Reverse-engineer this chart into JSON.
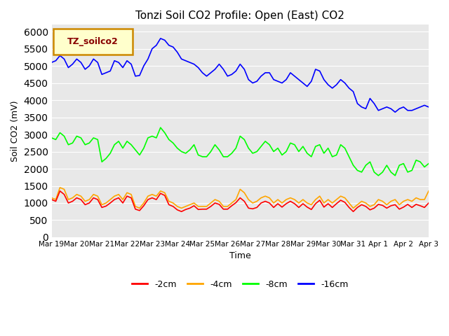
{
  "title": "Tonzi Soil CO2 Profile: Open (East) CO2",
  "xlabel": "Time",
  "ylabel": "Soil CO2 (mV)",
  "ylim": [
    0,
    6200
  ],
  "yticks": [
    0,
    500,
    1000,
    1500,
    2000,
    2500,
    3000,
    3500,
    4000,
    4500,
    5000,
    5500,
    6000
  ],
  "bg_color": "#e8e8e8",
  "fig_color": "#ffffff",
  "legend_label": "TZ_soilco2",
  "legend_bg": "#ffffcc",
  "legend_border": "#cc8800",
  "legend_text_color": "#880000",
  "series_colors": {
    "2cm": "#ff0000",
    "4cm": "#ffa500",
    "8cm": "#00ff00",
    "16cm": "#0000ff"
  },
  "x_tick_labels": [
    "Mar 19",
    "Mar 20",
    "Mar 21",
    "Mar 22",
    "Mar 23",
    "Mar 24",
    "Mar 25",
    "Mar 26",
    "Mar 27",
    "Mar 28",
    "Mar 29",
    "Mar 30",
    "Mar 31",
    "Apr 1",
    "Apr 2",
    "Apr 3"
  ],
  "line_width": 1.2,
  "series_16cm": [
    5100,
    5150,
    5300,
    5200,
    4950,
    5050,
    5200,
    5100,
    4900,
    5000,
    5200,
    5100,
    4750,
    4800,
    4850,
    5150,
    5100,
    4950,
    5150,
    5050,
    4700,
    4720,
    5000,
    5200,
    5500,
    5600,
    5800,
    5750,
    5600,
    5550,
    5400,
    5200,
    5150,
    5100,
    5050,
    4950,
    4800,
    4700,
    4800,
    4900,
    5050,
    4900,
    4700,
    4750,
    4850,
    5050,
    4900,
    4600,
    4500,
    4550,
    4700,
    4800,
    4800,
    4600,
    4550,
    4500,
    4600,
    4800,
    4700,
    4600,
    4500,
    4400,
    4550,
    4900,
    4850,
    4600,
    4450,
    4350,
    4450,
    4600,
    4500,
    4350,
    4250,
    3900,
    3800,
    3750,
    4050,
    3900,
    3700,
    3750,
    3800,
    3750,
    3650,
    3750,
    3800,
    3700,
    3700,
    3750,
    3800,
    3850,
    3800
  ],
  "series_8cm": [
    2900,
    2850,
    3050,
    2950,
    2700,
    2750,
    2950,
    2900,
    2700,
    2750,
    2900,
    2850,
    2200,
    2300,
    2450,
    2700,
    2800,
    2600,
    2800,
    2700,
    2550,
    2400,
    2600,
    2900,
    2950,
    2900,
    3200,
    3050,
    2850,
    2750,
    2600,
    2500,
    2450,
    2550,
    2700,
    2400,
    2350,
    2350,
    2500,
    2700,
    2550,
    2350,
    2350,
    2450,
    2600,
    2950,
    2850,
    2600,
    2450,
    2500,
    2650,
    2800,
    2700,
    2500,
    2600,
    2400,
    2500,
    2750,
    2700,
    2500,
    2650,
    2450,
    2350,
    2650,
    2700,
    2450,
    2600,
    2350,
    2400,
    2700,
    2600,
    2350,
    2100,
    1950,
    1900,
    2100,
    2200,
    1900,
    1800,
    1900,
    2100,
    1900,
    1800,
    2100,
    2150,
    1900,
    1950,
    2250,
    2200,
    2050,
    2150
  ],
  "series_4cm": [
    1150,
    1100,
    1450,
    1400,
    1100,
    1150,
    1250,
    1200,
    1050,
    1100,
    1250,
    1200,
    950,
    1000,
    1100,
    1200,
    1250,
    1100,
    1300,
    1250,
    900,
    850,
    1000,
    1200,
    1250,
    1200,
    1350,
    1300,
    1050,
    1000,
    900,
    850,
    900,
    950,
    1000,
    900,
    900,
    900,
    1000,
    1100,
    1050,
    900,
    900,
    1000,
    1100,
    1400,
    1300,
    1100,
    1000,
    1050,
    1150,
    1200,
    1150,
    1000,
    1100,
    1000,
    1100,
    1150,
    1100,
    1000,
    1100,
    1000,
    950,
    1100,
    1200,
    1000,
    1100,
    1000,
    1100,
    1200,
    1150,
    1000,
    850,
    950,
    1050,
    1000,
    900,
    950,
    1100,
    1050,
    950,
    1050,
    1100,
    950,
    1050,
    1100,
    1050,
    1150,
    1100,
    1100,
    1350
  ],
  "series_2cm": [
    1100,
    1050,
    1350,
    1250,
    1000,
    1050,
    1150,
    1100,
    950,
    1000,
    1150,
    1100,
    870,
    910,
    1000,
    1100,
    1150,
    1000,
    1200,
    1150,
    820,
    780,
    920,
    1100,
    1150,
    1100,
    1280,
    1220,
    950,
    900,
    800,
    750,
    810,
    850,
    920,
    810,
    820,
    820,
    900,
    1000,
    960,
    820,
    820,
    920,
    1010,
    1150,
    1050,
    850,
    830,
    870,
    1000,
    1050,
    1000,
    870,
    980,
    880,
    980,
    1050,
    980,
    870,
    980,
    880,
    810,
    980,
    1080,
    880,
    980,
    870,
    980,
    1080,
    1020,
    870,
    750,
    870,
    950,
    900,
    800,
    850,
    960,
    930,
    850,
    920,
    950,
    820,
    880,
    960,
    870,
    960,
    920,
    870,
    1000
  ]
}
